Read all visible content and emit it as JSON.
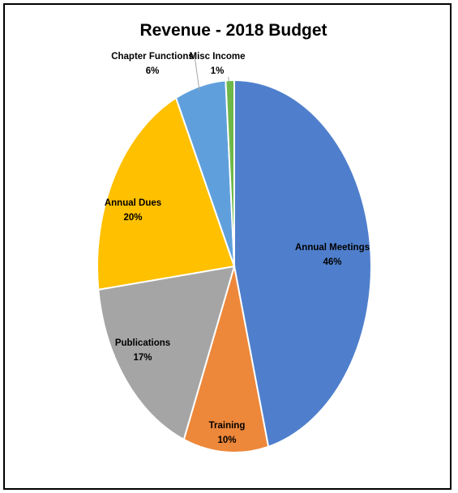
{
  "chart_data": {
    "type": "pie",
    "title": "Revenue - 2018 Budget",
    "slices": [
      {
        "label": "Annual Meetings",
        "value": 46,
        "pct_label": "46%",
        "color": "#4F7FCC"
      },
      {
        "label": "Training",
        "value": 10,
        "pct_label": "10%",
        "color": "#ED873A"
      },
      {
        "label": "Publications",
        "value": 17,
        "pct_label": "17%",
        "color": "#A5A5A5"
      },
      {
        "label": "Annual Dues",
        "value": 20,
        "pct_label": "20%",
        "color": "#FFC000"
      },
      {
        "label": "Chapter Functions",
        "value": 6,
        "pct_label": "6%",
        "color": "#5FA0DC"
      },
      {
        "label": "Misc Income",
        "value": 1,
        "pct_label": "1%",
        "color": "#6EB84A"
      }
    ],
    "legend": "none",
    "data_labels": "category name and percentage"
  }
}
